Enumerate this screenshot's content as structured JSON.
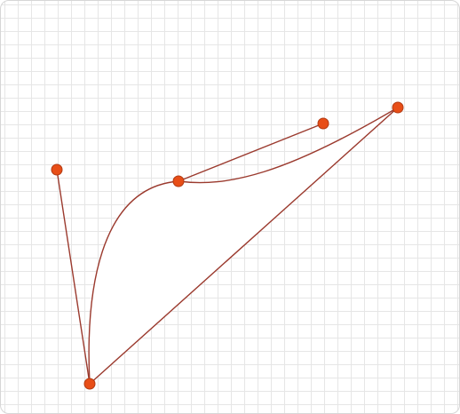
{
  "editor": {
    "colors": {
      "grid": "#e6e6e6",
      "curve": "#9b3a2e",
      "point_fill": "#e84e17",
      "point_stroke": "#b23a12"
    },
    "shape": "bezier-curve-editor"
  }
}
